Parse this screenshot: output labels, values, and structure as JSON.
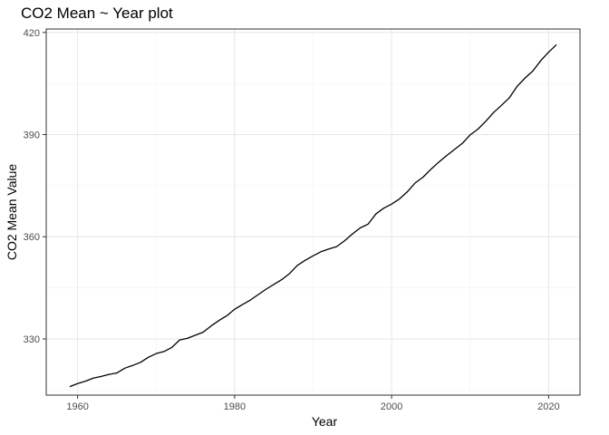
{
  "chart_data": {
    "type": "line",
    "title": "CO2 Mean ~ Year plot",
    "xlabel": "Year",
    "ylabel": "CO2 Mean Value",
    "xlim": [
      1956,
      2024
    ],
    "ylim": [
      313.5,
      421
    ],
    "x_ticks": [
      1960,
      1980,
      2000,
      2020
    ],
    "y_ticks": [
      330,
      360,
      390,
      420
    ],
    "x_minor_ticks": [
      1970,
      1990,
      2010
    ],
    "y_minor_ticks": [
      315,
      345,
      375,
      405
    ],
    "grid": true,
    "legend": "none",
    "line_color": "#000000",
    "x": [
      1959,
      1960,
      1961,
      1962,
      1963,
      1964,
      1965,
      1966,
      1967,
      1968,
      1969,
      1970,
      1971,
      1972,
      1973,
      1974,
      1975,
      1976,
      1977,
      1978,
      1979,
      1980,
      1981,
      1982,
      1983,
      1984,
      1985,
      1986,
      1987,
      1988,
      1989,
      1990,
      1991,
      1992,
      1993,
      1994,
      1995,
      1996,
      1997,
      1998,
      1999,
      2000,
      2001,
      2002,
      2003,
      2004,
      2005,
      2006,
      2007,
      2008,
      2009,
      2010,
      2011,
      2012,
      2013,
      2014,
      2015,
      2016,
      2017,
      2018,
      2019,
      2020,
      2021
    ],
    "y": [
      316.0,
      316.9,
      317.6,
      318.5,
      319.0,
      319.6,
      320.0,
      321.4,
      322.2,
      323.1,
      324.6,
      325.7,
      326.3,
      327.5,
      329.7,
      330.2,
      331.1,
      332.0,
      333.8,
      335.4,
      336.8,
      338.7,
      340.1,
      341.4,
      343.0,
      344.6,
      346.0,
      347.4,
      349.2,
      351.6,
      353.1,
      354.4,
      355.6,
      356.4,
      357.1,
      358.8,
      360.8,
      362.6,
      363.7,
      366.7,
      368.4,
      369.6,
      371.1,
      373.2,
      375.8,
      377.5,
      379.8,
      381.9,
      383.8,
      385.6,
      387.4,
      389.9,
      391.6,
      393.9,
      396.5,
      398.6,
      400.8,
      404.2,
      406.6,
      408.7,
      411.7,
      414.2,
      416.4
    ]
  }
}
